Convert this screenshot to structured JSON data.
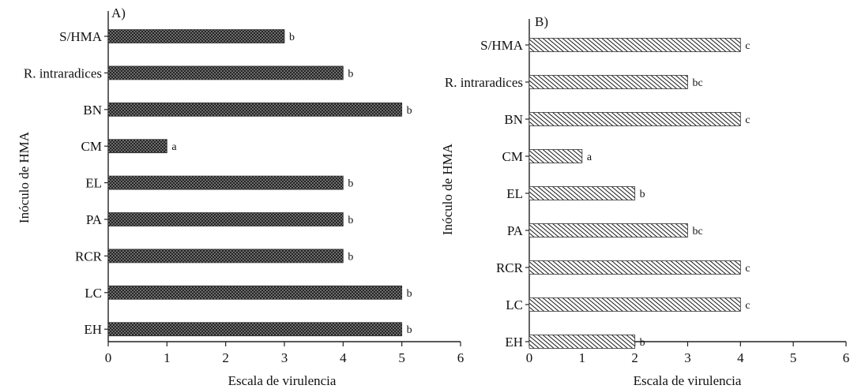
{
  "chart_data": [
    {
      "type": "bar",
      "orientation": "horizontal",
      "panel_label": "A)",
      "xlabel": "Escala de virulencia",
      "ylabel": "Inóculo de HMA",
      "xlim": [
        0,
        6
      ],
      "xticks": [
        "0",
        "1",
        "2",
        "3",
        "4",
        "5",
        "6"
      ],
      "categories": [
        "S/HMA",
        "R. intraradices",
        "BN",
        "CM",
        "EL",
        "PA",
        "RCR",
        "LC",
        "EH"
      ],
      "values": [
        3,
        4,
        5,
        1,
        4,
        4,
        4,
        5,
        5
      ],
      "data_labels": [
        "b",
        "b",
        "b",
        "a",
        "b",
        "b",
        "b",
        "b",
        "b"
      ],
      "fill_pattern": "crosshatch",
      "grid": false
    },
    {
      "type": "bar",
      "orientation": "horizontal",
      "panel_label": "B)",
      "xlabel": "Escala de virulencia",
      "ylabel": "Inóculo de HMA",
      "xlim": [
        0,
        6
      ],
      "xticks": [
        "0",
        "1",
        "2",
        "3",
        "4",
        "5",
        "6"
      ],
      "categories": [
        "S/HMA",
        "R. intraradices",
        "BN",
        "CM",
        "EL",
        "PA",
        "RCR",
        "LC",
        "EH"
      ],
      "values": [
        4,
        3,
        4,
        1,
        2,
        3,
        4,
        4,
        2
      ],
      "data_labels": [
        "c",
        "bc",
        "c",
        "a",
        "b",
        "bc",
        "c",
        "c",
        "b"
      ],
      "fill_pattern": "diagonal",
      "grid": false
    }
  ]
}
